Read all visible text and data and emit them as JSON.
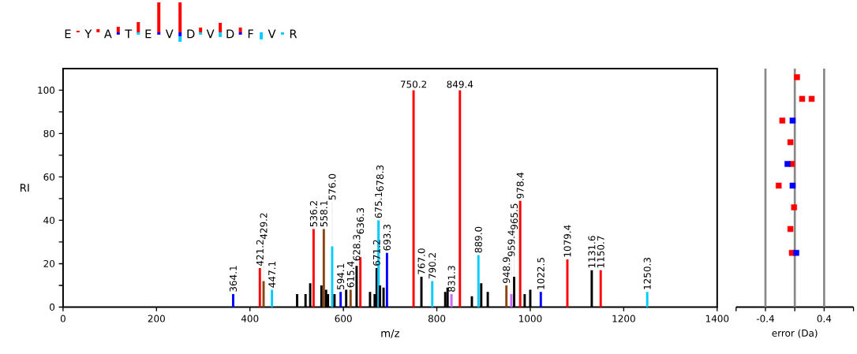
{
  "chart_data": [
    {
      "type": "bar",
      "xlabel": "m/z",
      "ylabel": "RI",
      "x": [
        364.1,
        421.2,
        429.2,
        447.1,
        501,
        519,
        529,
        536.2,
        553,
        558.1,
        563,
        567,
        576.0,
        581,
        594.1,
        606,
        615.4,
        628.3,
        636.3,
        657,
        667,
        671.2,
        675.1,
        678.3,
        686,
        693.3,
        750.2,
        767.0,
        790.2,
        818,
        823,
        831.3,
        849.4,
        875,
        889.0,
        895,
        909,
        948.9,
        959.4,
        965.5,
        978.4,
        988,
        1000,
        1022.5,
        1079.4,
        1131.6,
        1150.7,
        1250.3
      ],
      "values": [
        6,
        18,
        12,
        8,
        6,
        6,
        11,
        36,
        10,
        36,
        8,
        6,
        28,
        6,
        7,
        8,
        8,
        19,
        23,
        7,
        6,
        18,
        40,
        10,
        9,
        25,
        100,
        14,
        12,
        7,
        9,
        6,
        100,
        5,
        24,
        11,
        7,
        10,
        6,
        14,
        49,
        6,
        8,
        7,
        22,
        17,
        17,
        7
      ],
      "colors": [
        "#0000ff",
        "#ff0000",
        "#8b4513",
        "#00ccff",
        "#000000",
        "#000000",
        "#000000",
        "#ff0000",
        "#000000",
        "#8b4513",
        "#000000",
        "#000000",
        "#00ccff",
        "#000000",
        "#0000ff",
        "#000000",
        "#8b4513",
        "#000000",
        "#ff0000",
        "#000000",
        "#000000",
        "#000000",
        "#00ccff",
        "#000000",
        "#000000",
        "#0000ff",
        "#ff0000",
        "#000000",
        "#00ccff",
        "#000000",
        "#000000",
        "#cc66ff",
        "#ff0000",
        "#000000",
        "#00ccff",
        "#000000",
        "#000000",
        "#8b4513",
        "#cc66ff",
        "#000000",
        "#ff0000",
        "#000000",
        "#000000",
        "#0000ff",
        "#ff0000",
        "#000000",
        "#ff0000",
        "#00ccff"
      ],
      "annotations": [
        "E",
        "Y",
        "A",
        "T",
        "E",
        "V",
        "D",
        "V",
        "D",
        "F",
        "V",
        "R",
        {
          "text": "364.1",
          "x": 364.1,
          "y": 6
        },
        {
          "text": "421.2",
          "x": 421.2,
          "y": 18
        },
        {
          "text": "429.2",
          "x": 429.2,
          "y": 12
        },
        {
          "text": "447.1",
          "x": 447.1,
          "y": 8
        },
        {
          "text": "536.2",
          "x": 536.2,
          "y": 36
        },
        {
          "text": "558.1",
          "x": 558.1,
          "y": 36
        },
        {
          "text": "576.0",
          "x": 576.0,
          "y": 28
        },
        {
          "text": "594.1",
          "x": 594.1,
          "y": 7
        },
        {
          "text": "615.4",
          "x": 615.4,
          "y": 8
        },
        {
          "text": "628.3",
          "x": 628.3,
          "y": 19
        },
        {
          "text": "636.3",
          "x": 636.3,
          "y": 23
        },
        {
          "text": "671.2",
          "x": 671.2,
          "y": 18
        },
        {
          "text": "675.1",
          "x": 675.1,
          "y": 40
        },
        {
          "text": "678.3",
          "x": 678.3,
          "y": 10
        },
        {
          "text": "693.3",
          "x": 693.3,
          "y": 25
        },
        {
          "text": "750.2",
          "x": 750.2,
          "y": 100
        },
        {
          "text": "767.0",
          "x": 767.0,
          "y": 14
        },
        {
          "text": "790.2",
          "x": 790.2,
          "y": 12
        },
        {
          "text": "831.3",
          "x": 831.3,
          "y": 6
        },
        {
          "text": "849.4",
          "x": 849.4,
          "y": 100
        },
        {
          "text": "889.0",
          "x": 889.0,
          "y": 24
        },
        {
          "text": "948.9",
          "x": 948.9,
          "y": 10
        },
        {
          "text": "959.4",
          "x": 959.4,
          "y": 6
        },
        {
          "text": "965.5",
          "x": 965.5,
          "y": 14
        },
        {
          "text": "978.4",
          "x": 978.4,
          "y": 49
        },
        {
          "text": "1022.5",
          "x": 1022.5,
          "y": 7
        },
        {
          "text": "1079.4",
          "x": 1079.4,
          "y": 22
        },
        {
          "text": "1131.6",
          "x": 1131.6,
          "y": 17
        },
        {
          "text": "1150.7",
          "x": 1150.7,
          "y": 17
        },
        {
          "text": "1250.3",
          "x": 1250.3,
          "y": 7
        }
      ],
      "xlim": [
        0,
        1400
      ],
      "ylim": [
        0,
        110
      ],
      "xticks": [
        0,
        200,
        400,
        600,
        800,
        1000,
        1200,
        1400
      ],
      "yticks": [
        0,
        {
          "value": 10,
          "label": null
        },
        20,
        {
          "value": 30,
          "label": null
        },
        40,
        {
          "value": 50,
          "label": null
        },
        60,
        {
          "value": 70,
          "label": null
        },
        80,
        {
          "value": 90,
          "label": null
        },
        100
      ]
    },
    {
      "type": "scatter",
      "xlabel": "error (Da)",
      "marker": "square",
      "tick_labels": "x",
      "series": [
        {
          "color": "#ff0000",
          "x": [
            0.03,
            0.1,
            0.23,
            -0.17,
            -0.06,
            -0.04,
            -0.22,
            -0.01,
            -0.06,
            -0.04
          ],
          "values": [
            106,
            96,
            96,
            86,
            76,
            66,
            56,
            46,
            36,
            25
          ]
        },
        {
          "color": "#0000ff",
          "x": [
            -0.03,
            -0.1,
            -0.03,
            0.02
          ],
          "values": [
            86,
            66,
            56,
            25
          ]
        }
      ],
      "xlim": [
        -0.8,
        0.8
      ],
      "ylim": [
        0,
        110
      ],
      "xticks": [
        {
          "value": -0.8,
          "label": null
        },
        -0.4,
        {
          "value": 0,
          "label": null
        },
        0.4,
        {
          "value": 0.8,
          "label": null
        }
      ],
      "ref_lines": [
        {
          "axis": "x",
          "value": -0.4,
          "color": "#888888"
        },
        {
          "axis": "x",
          "value": 0,
          "color": "#888888"
        },
        {
          "axis": "x",
          "value": 0.4,
          "color": "#888888"
        }
      ]
    }
  ]
}
